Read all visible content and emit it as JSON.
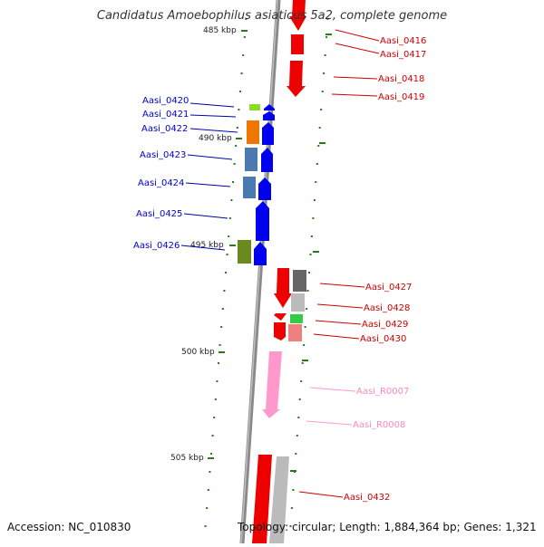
{
  "title": "Candidatus Amoebophilus asiaticus 5a2, complete genome",
  "footer": {
    "accession": "Accession: NC_010830",
    "stats": "Topology: circular; Length: 1,884,364 bp; Genes: 1,321"
  },
  "colors": {
    "backbone": "#8a8a8a",
    "forward_strand": "#0000ee",
    "reverse_strand": "#ee0000",
    "rna_gene": "#ff99cc",
    "tick": "#2a7a1a"
  },
  "scale": {
    "ticks": [
      "485 kbp",
      "490 kbp",
      "495 kbp",
      "500 kbp",
      "505 kbp"
    ]
  },
  "genes_left": [
    {
      "label": "Aasi_0420"
    },
    {
      "label": "Aasi_0421"
    },
    {
      "label": "Aasi_0422"
    },
    {
      "label": "Aasi_0423"
    },
    {
      "label": "Aasi_0424"
    },
    {
      "label": "Aasi_0425"
    },
    {
      "label": "Aasi_0426"
    }
  ],
  "genes_right": [
    {
      "label": "Aasi_0416"
    },
    {
      "label": "Aasi_0417"
    },
    {
      "label": "Aasi_0418"
    },
    {
      "label": "Aasi_0419"
    },
    {
      "label": "Aasi_0427"
    },
    {
      "label": "Aasi_0428"
    },
    {
      "label": "Aasi_0429"
    },
    {
      "label": "Aasi_0430"
    },
    {
      "label": "Aasi_R0007"
    },
    {
      "label": "Aasi_R0008"
    },
    {
      "label": "Aasi_0432"
    }
  ]
}
